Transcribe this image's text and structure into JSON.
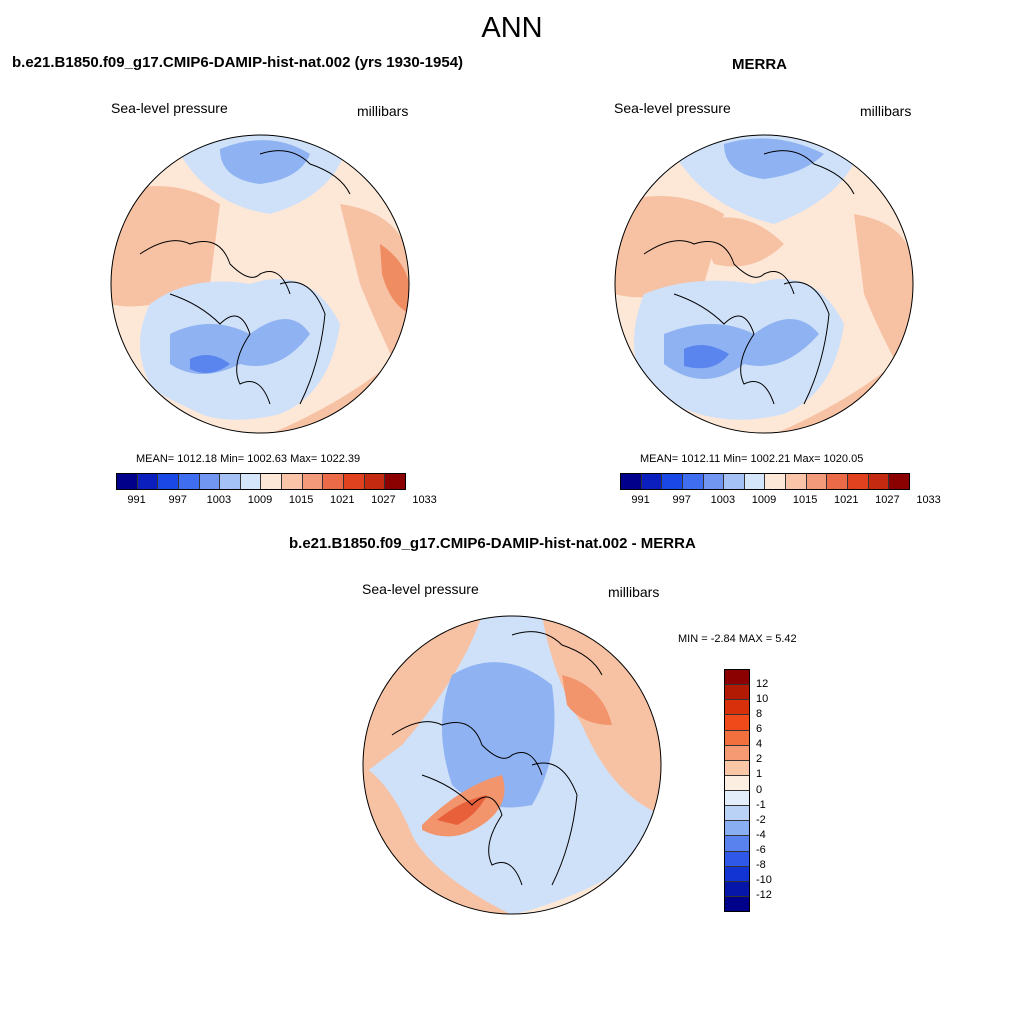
{
  "season": "ANN",
  "panels": [
    {
      "title": "b.e21.B1850.f09_g17.CMIP6-DAMIP-hist-nat.002 (yrs 1930-1954)",
      "variable": "Sea-level pressure",
      "units": "millibars",
      "stats": "MEAN= 1012.18  Min= 1002.63  Max= 1022.39"
    },
    {
      "title": "MERRA",
      "variable": "Sea-level pressure",
      "units": "millibars",
      "stats": "MEAN= 1012.11  Min= 1002.21  Max= 1020.05"
    },
    {
      "title": "b.e21.B1850.f09_g17.CMIP6-DAMIP-hist-nat.002 - MERRA",
      "variable": "Sea-level pressure",
      "units": "millibars",
      "stats": "MIN =  -2.84 MAX =   5.42"
    }
  ],
  "abs_colorbar": {
    "labels": [
      "991",
      "997",
      "1003",
      "1009",
      "1015",
      "1021",
      "1027",
      "1033"
    ],
    "colors": [
      "#00008b",
      "#0a1fbd",
      "#1a48e6",
      "#3f6ff0",
      "#7096f2",
      "#a4c2f5",
      "#d6e6fa",
      "#fde8d8",
      "#f9c4a8",
      "#f29a7a",
      "#eb6b48",
      "#e0411f",
      "#c42a10",
      "#8b0000"
    ]
  },
  "diff_colorbar": {
    "labels": [
      "12",
      "10",
      "8",
      "6",
      "4",
      "2",
      "1",
      "0",
      "-1",
      "-2",
      "-4",
      "-6",
      "-8",
      "-10",
      "-12"
    ],
    "colors": [
      "#8b0000",
      "#b31a04",
      "#d8300a",
      "#f04a1a",
      "#f2703e",
      "#f59a72",
      "#f9c6a6",
      "#fdeee2",
      "#e3eefb",
      "#b9d2f6",
      "#8aaef2",
      "#5a82ee",
      "#2f58e8",
      "#1234d2",
      "#0616a8",
      "#00008b"
    ]
  },
  "map_colors": {
    "deep_blue": "#5a84ee",
    "mid_blue": "#8fb2f3",
    "light_blue": "#cfe0f9",
    "cream": "#fdebdc",
    "light_orange": "#f8c4a6",
    "orange": "#f2946c",
    "red_orange": "#e8603a"
  }
}
